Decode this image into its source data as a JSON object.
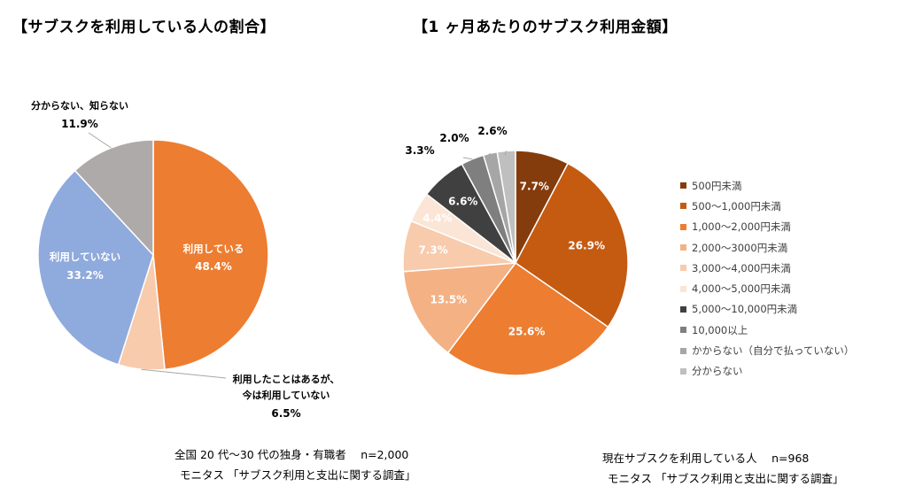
{
  "chart_data": [
    {
      "type": "pie",
      "title": "【サブスクを利用している人の割合】",
      "slices": [
        {
          "label": "利用している",
          "value": 48.4,
          "value_label": "48.4%",
          "color": "#ED7D31"
        },
        {
          "label": "利用したことはあるが、今は利用していない",
          "label_lines": [
            "利用したことはあるが、",
            "今は利用していない"
          ],
          "value": 6.5,
          "value_label": "6.5%",
          "color": "#F8CBAD"
        },
        {
          "label": "利用していない",
          "value": 33.2,
          "value_label": "33.2%",
          "color": "#8FAADC"
        },
        {
          "label": "分からない、知らない",
          "value": 11.9,
          "value_label": "11.9%",
          "color": "#AEAAAA"
        }
      ],
      "footnote_lines": [
        "全国 20 代～30 代の独身・有職者　 n=2,000",
        "モニタス 「サブスク利用と支出に関する調査」"
      ]
    },
    {
      "type": "pie",
      "title": "【1 ヶ月あたりのサブスク利用金額】",
      "slices": [
        {
          "label": "500円未満",
          "value": 7.7,
          "value_label": "7.7%",
          "color": "#843C0C"
        },
        {
          "label": "500～1,000円未満",
          "value": 26.9,
          "value_label": "26.9%",
          "color": "#C55A11"
        },
        {
          "label": "1,000～2,000円未満",
          "value": 25.6,
          "value_label": "25.6%",
          "color": "#ED7D31"
        },
        {
          "label": "2,000～3000円未満",
          "value": 13.5,
          "value_label": "13.5%",
          "color": "#F4B183"
        },
        {
          "label": "3,000～4,000円未満",
          "value": 7.3,
          "value_label": "7.3%",
          "color": "#F8CBAD"
        },
        {
          "label": "4,000～5,000円未満",
          "value": 4.4,
          "value_label": "4.4%",
          "color": "#FBE5D6"
        },
        {
          "label": "5,000～10,000円未満",
          "value": 6.6,
          "value_label": "6.6%",
          "color": "#404040"
        },
        {
          "label": "10,000以上",
          "value": 3.3,
          "value_label": "3.3%",
          "color": "#7F7F7F"
        },
        {
          "label": "かからない（自分で払っていない）",
          "value": 2.0,
          "value_label": "2.0%",
          "color": "#A6A6A6"
        },
        {
          "label": "分からない",
          "value": 2.6,
          "value_label": "2.6%",
          "color": "#BFBFBF"
        }
      ],
      "legend_position": "right",
      "footnote_lines": [
        "現在サブスクを利用している人　 n=968",
        "モニタス 「サブスク利用と支出に関する調査」"
      ]
    }
  ]
}
